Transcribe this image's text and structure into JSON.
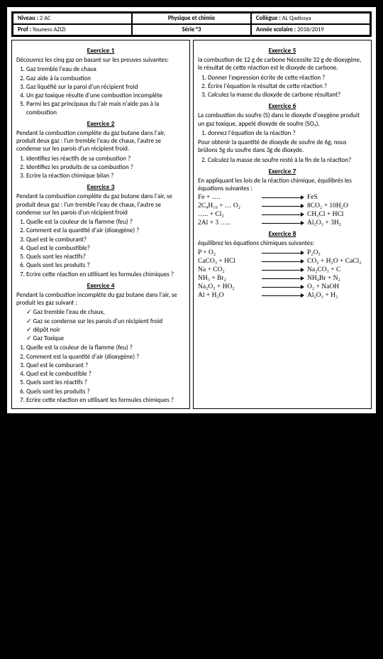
{
  "header": {
    "r1c1_label": "Niveau : ",
    "r1c1_val": "2 AC",
    "r1c2": "Physique et chimie",
    "r1c3_label": "Collègue : ",
    "r1c3_val": "AL Qadissya",
    "r2c1_label": "Prof : ",
    "r2c1_val": "Youness AZIZI",
    "r2c2": "Série °3",
    "r2c3_label": "Année scolaire : ",
    "r2c3_val": "2018/2019"
  },
  "ex1": {
    "title": "Exercice 1",
    "intro": "Découvrez  les cinq gaz on  basant sur les preuves suivantes:",
    "items": [
      "Gaz tremble l'eau de chaux",
      "Gaz aide à la combustion",
      "Gaz liquéfié sur la paroi d'un récipient froid",
      "Un gaz toxique résulte d'une combustion incomplète",
      "Parmi les gaz principaux du l'air mais n'aide pas  à la combustion"
    ]
  },
  "ex2": {
    "title": "Exercice 2",
    "intro": "Pendant la combustion complète du gaz butane dans l'air, produit deux gaz :  l'un tremble l'eau de chaux, l'autre se condense sur les parois  d'un récipient froid.",
    "items": [
      "Identifiez les réactifs de sa combustion ?",
      "Identifiez les produits de sa combustion ?",
      "Ecrire la réaction chimique bilan ?"
    ]
  },
  "ex3": {
    "title": "Exercice 3",
    "intro": "Pendant la combustion complète du gaz butane dans l'air, se produit deux gaz :  l'un tremble l'eau de chaux, l'autre se condense sur les parois  d'un récipient froid",
    "items": [
      "Quelle est la couleur de la flamme (feu) ?",
      "Comment est la quantité d'air (dioxygène) ?",
      "Quel est le comburant?",
      "Quel est le combustible?",
      "Quels sont les réactifs?",
      "Quels sont les produits ?",
      "Ecrire cette réaction en utilisant les formules chimiques ?"
    ]
  },
  "ex4": {
    "title": "Exercice 4",
    "intro": "Pendant la combustion incomplète du gaz butane dans l'air, se produit les gaz suivant :",
    "checks": [
      "Gaz tremble l'eau de chaux,",
      "Gaz se condense sur les parois d'un récipient froid",
      "dépôt noir",
      "Gaz Toxique"
    ],
    "items": [
      "Quelle est la couleur de la flamme (feu) ?",
      "Comment est la quantité d'air (dioxygène) ?",
      "Quel est le comburant ?",
      "Quel est le combustible ?",
      "Quels sont les réactifs ?",
      "Quels sont les produits ?",
      "Ecrire cette réaction en utilisant les formules chimiques ?"
    ]
  },
  "ex5": {
    "title": "Exercice 5",
    "intro": "la combustion de 12 g de carbone Nécessite 32 g de dioxygène, le résultat de cette réaction est le dioxyde de carbone.",
    "items": [
      "Donner l'expression écrite de cette réaction ?",
      "Écrire l'équation le résultat de cette réaction ?",
      "Calculez la masse du  dioxyde de carbone résultant?"
    ]
  },
  "ex6": {
    "title": "Exercice 6",
    "intro": "La combustion du soufre (S) dans le dioxyde d'oxygène produit un gaz toxique, appelé dioxyde de soufre (SO₂).",
    "q1": "donnez l'équation de la réaction ?",
    "intro2": "Pour obtenir la quantité de dioxyde de soufre de 6g, nous brûlons 5g  du soufre dans  3g de dioxyde.",
    "q2": "Calculez la masse de soufre resté à la fin de la réaction?"
  },
  "ex7": {
    "title": "Exercice 7",
    "intro": "En appliquant les lois de la réaction chimique, équilibrés les  équations suivantes :",
    "eqs": [
      {
        "l": "Fe +  ….",
        "r": "FeS"
      },
      {
        "l": "2C₄H₁₀ + … O₂",
        "r": "8CO₂ + 10H₂O"
      },
      {
        "l": "….. + Cl₂",
        "r": "CH₃Cl  + HCl"
      },
      {
        "l": "2Al + 3  …..",
        "r": "Al₂O₃ +  3H₂"
      }
    ]
  },
  "ex8": {
    "title": "Exercice 8",
    "intro": "équilibrez les équations chimiques suivantes:",
    "eqs": [
      {
        "l": "P    +    O₂",
        "r": "P₂O₅"
      },
      {
        "l": "CaCO₃ +  HCl",
        "r": "CO₂ +  H₂O  + CaCl₂"
      },
      {
        "l": "Na +   CO₂",
        "r": "Na₂CO₃ +  C"
      },
      {
        "l": "NH₃ +    Br₂",
        "r": "NH₄Br +   N₂"
      },
      {
        "l": "Na₂O₂ +   HO₂",
        "r": "O₂ +  NaOH"
      },
      {
        "l": "Al +   H₂O",
        "r": "Al₂O₃ +  H₂"
      }
    ]
  }
}
